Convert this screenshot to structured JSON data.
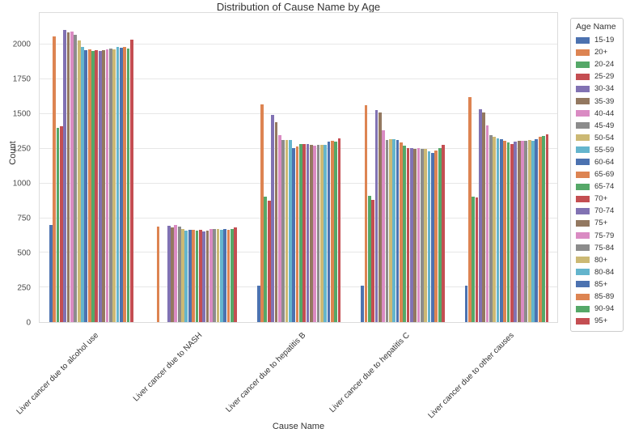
{
  "chart_data": {
    "type": "bar",
    "title": "Distribution of Cause Name by Age",
    "xlabel": "Cause Name",
    "ylabel": "Count",
    "ylim": [
      0,
      2230
    ],
    "yticks": [
      0,
      250,
      500,
      750,
      1000,
      1250,
      1500,
      1750,
      2000
    ],
    "grid": true,
    "legend_title": "Age Name",
    "legend_position": "right",
    "palette": [
      "#4C72B0",
      "#DD8452",
      "#55A868",
      "#C44E52",
      "#8172B3",
      "#937860",
      "#DA8BC3",
      "#8C8C8C",
      "#CCB974",
      "#64B5CD"
    ],
    "categories": [
      "Liver cancer due to alcohol use",
      "Liver cancer due to NASH",
      "Liver cancer due to hepatitis B",
      "Liver cancer due to hepatitis C",
      "Liver cancer due to other causes"
    ],
    "series": [
      {
        "name": "15-19",
        "color": "#4C72B0",
        "values": [
          700,
          0,
          260,
          260,
          260
        ]
      },
      {
        "name": "20+",
        "color": "#DD8452",
        "values": [
          2060,
          690,
          1570,
          1565,
          1625
        ]
      },
      {
        "name": "20-24",
        "color": "#55A868",
        "values": [
          1400,
          0,
          905,
          910,
          905
        ]
      },
      {
        "name": "25-29",
        "color": "#C44E52",
        "values": [
          1410,
          0,
          875,
          880,
          900
        ]
      },
      {
        "name": "30-34",
        "color": "#8172B3",
        "values": [
          2105,
          695,
          1495,
          1530,
          1533
        ]
      },
      {
        "name": "35-39",
        "color": "#937860",
        "values": [
          2090,
          683,
          1440,
          1512,
          1510
        ]
      },
      {
        "name": "40-44",
        "color": "#DA8BC3",
        "values": [
          2095,
          699,
          1350,
          1385,
          1417
        ]
      },
      {
        "name": "45-49",
        "color": "#8C8C8C",
        "values": [
          2070,
          690,
          1316,
          1316,
          1349
        ]
      },
      {
        "name": "50-54",
        "color": "#CCB974",
        "values": [
          2030,
          674,
          1316,
          1322,
          1335
        ]
      },
      {
        "name": "55-59",
        "color": "#64B5CD",
        "values": [
          1985,
          662,
          1312,
          1322,
          1326
        ]
      },
      {
        "name": "60-64",
        "color": "#4C72B0",
        "values": [
          1960,
          668,
          1258,
          1316,
          1320
        ]
      },
      {
        "name": "65-69",
        "color": "#DD8452",
        "values": [
          1966,
          664,
          1267,
          1297,
          1310
        ]
      },
      {
        "name": "65-74",
        "color": "#55A868",
        "values": [
          1958,
          660,
          1287,
          1271,
          1297
        ]
      },
      {
        "name": "70+",
        "color": "#C44E52",
        "values": [
          1963,
          664,
          1283,
          1258,
          1287
        ]
      },
      {
        "name": "70-74",
        "color": "#8172B3",
        "values": [
          1954,
          655,
          1283,
          1258,
          1300
        ]
      },
      {
        "name": "75+",
        "color": "#937860",
        "values": [
          1959,
          660,
          1277,
          1248,
          1305
        ]
      },
      {
        "name": "75-79",
        "color": "#DA8BC3",
        "values": [
          1969,
          669,
          1271,
          1258,
          1310
        ]
      },
      {
        "name": "75-84",
        "color": "#8C8C8C",
        "values": [
          1975,
          674,
          1277,
          1252,
          1310
        ]
      },
      {
        "name": "80+",
        "color": "#CCB974",
        "values": [
          1966,
          669,
          1277,
          1248,
          1316
        ]
      },
      {
        "name": "80-84",
        "color": "#64B5CD",
        "values": [
          1984,
          664,
          1277,
          1229,
          1306
        ]
      },
      {
        "name": "85+",
        "color": "#4C72B0",
        "values": [
          1979,
          669,
          1302,
          1219,
          1322
        ]
      },
      {
        "name": "85-89",
        "color": "#DD8452",
        "values": [
          1984,
          664,
          1310,
          1238,
          1335
        ]
      },
      {
        "name": "90-94",
        "color": "#55A868",
        "values": [
          1974,
          669,
          1302,
          1258,
          1341
        ]
      },
      {
        "name": "95+",
        "color": "#C44E52",
        "values": [
          2038,
          684,
          1325,
          1277,
          1355
        ]
      }
    ]
  }
}
